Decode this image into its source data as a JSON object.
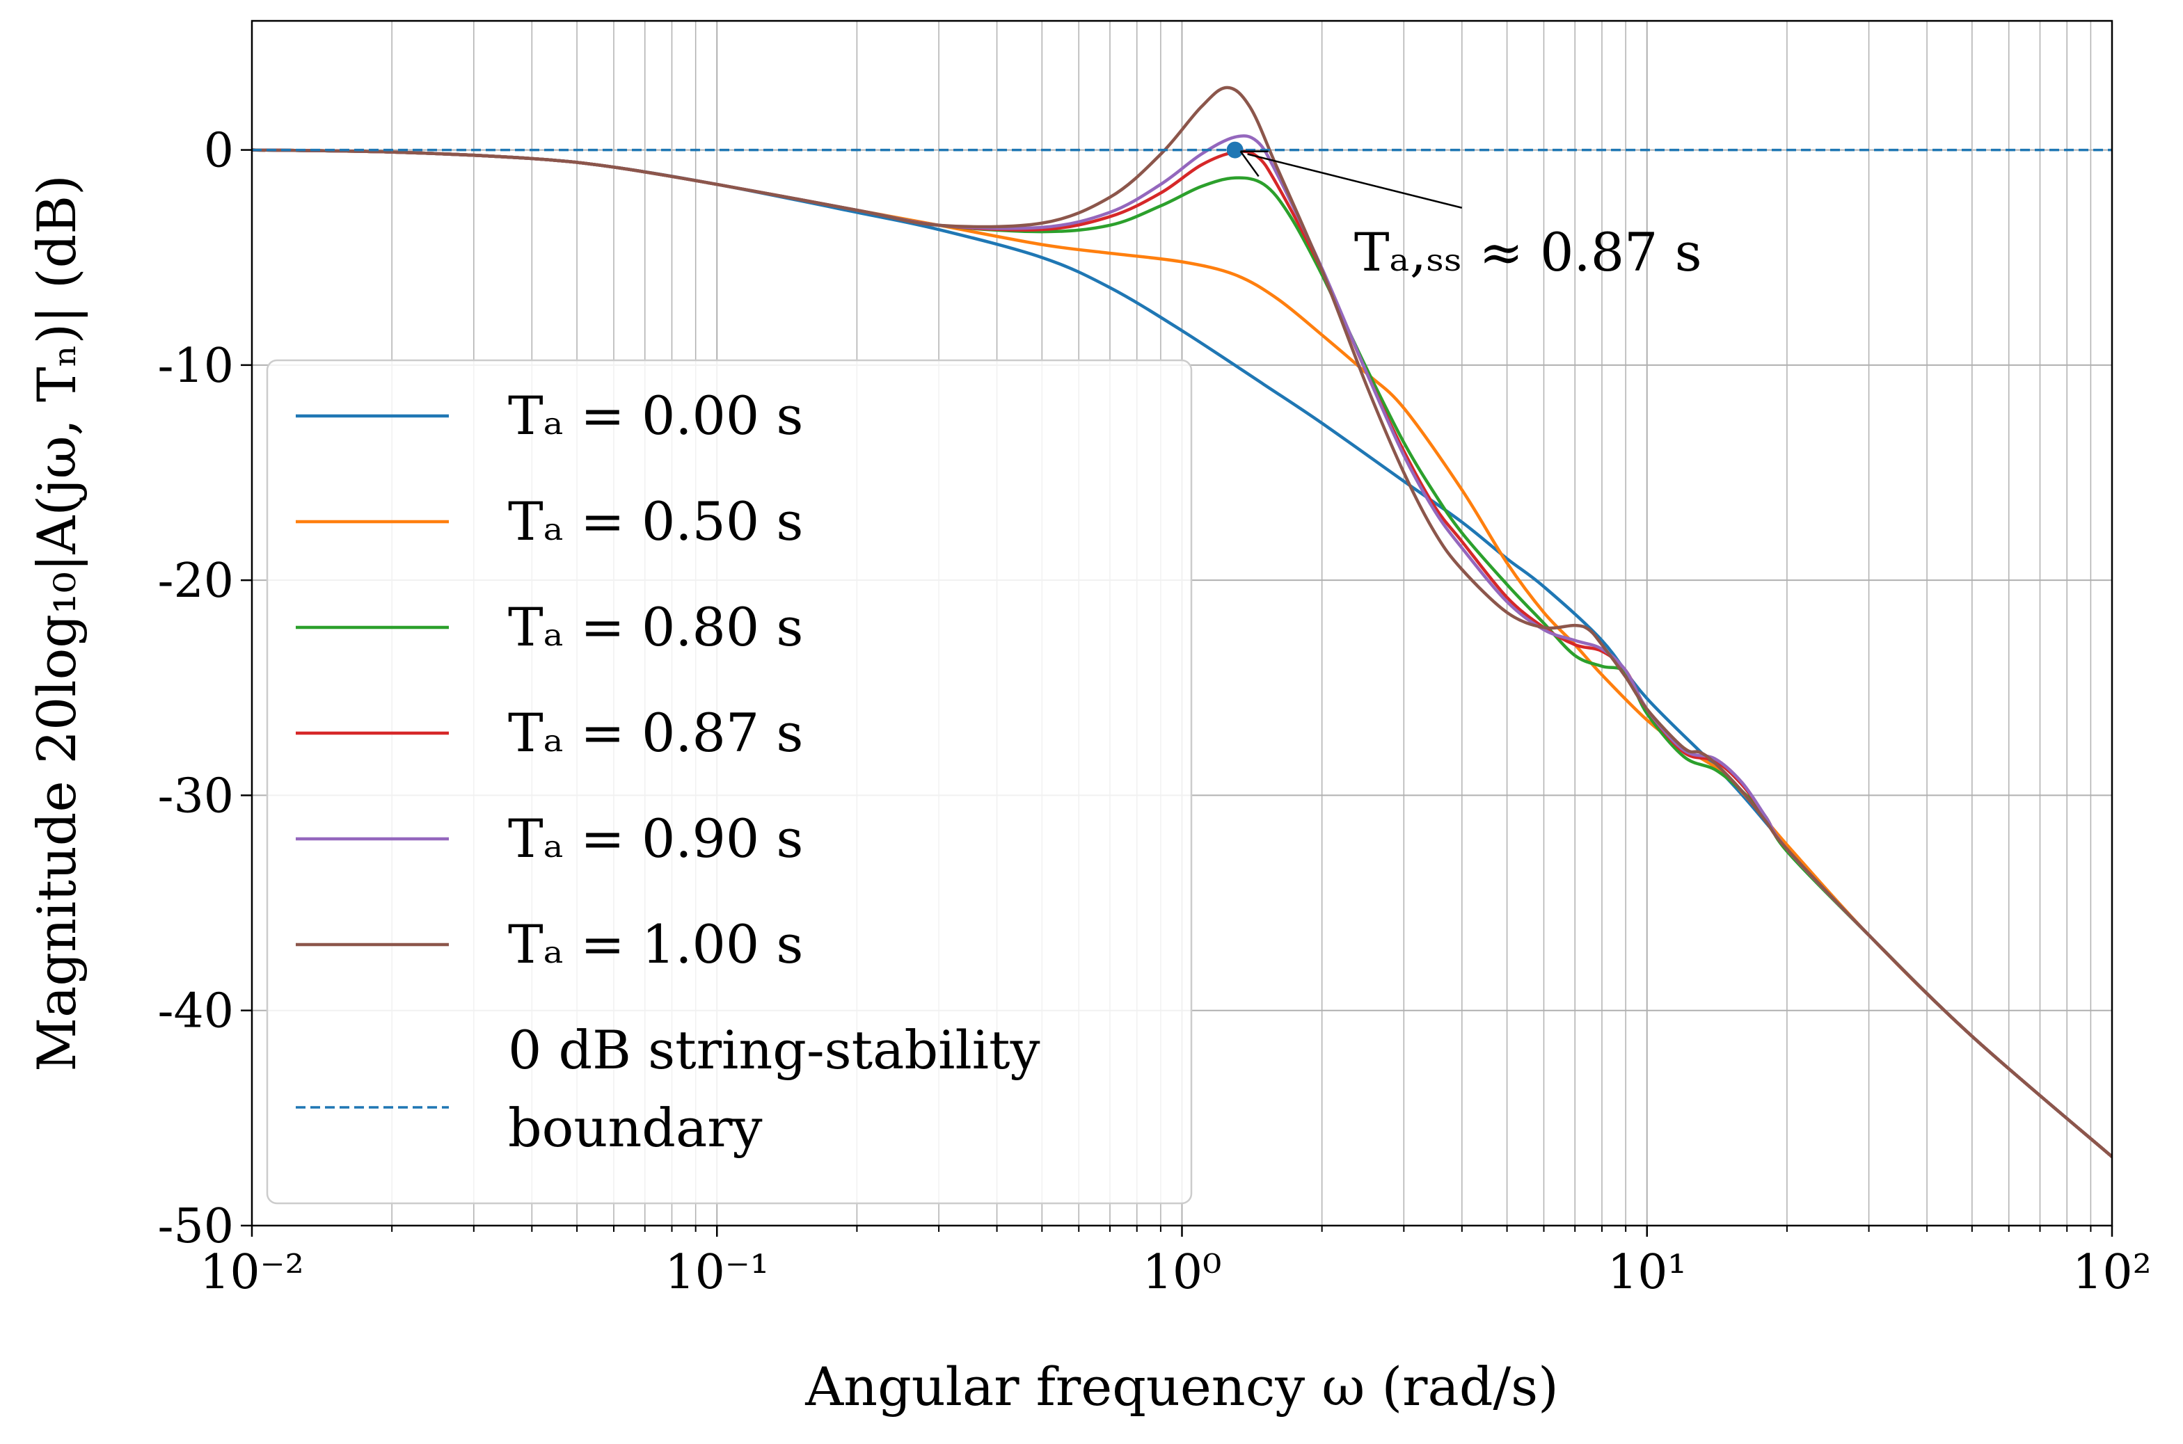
{
  "chart_data": {
    "type": "line",
    "xscale": "log",
    "xlabel": "Angular frequency ω (rad/s)",
    "ylabel": "Magnitude 20log₁₀|A(jω, Tₙ)| (dB)",
    "xlim": [
      0.01,
      100
    ],
    "ylim": [
      -50,
      6
    ],
    "x_ticks": [
      0.01,
      0.1,
      1,
      10,
      100
    ],
    "x_tick_labels": [
      "10⁻²",
      "10⁻¹",
      "10⁰",
      "10¹",
      "10²"
    ],
    "y_ticks": [
      0,
      -10,
      -20,
      -30,
      -40,
      -50
    ],
    "y_tick_labels": [
      "0",
      "-10",
      "-20",
      "-30",
      "-40",
      "-50"
    ],
    "grid": true,
    "legend_position": "lower-left",
    "series": [
      {
        "name": "Tₐ = 0.00 s",
        "color": "#1f77b4",
        "dash": "solid",
        "points": [
          [
            0.01,
            0
          ],
          [
            0.02,
            -0.1
          ],
          [
            0.04,
            -0.4
          ],
          [
            0.06,
            -0.8
          ],
          [
            0.1,
            -1.6
          ],
          [
            0.2,
            -2.9
          ],
          [
            0.3,
            -3.7
          ],
          [
            0.5,
            -5.0
          ],
          [
            0.7,
            -6.4
          ],
          [
            1.0,
            -8.4
          ],
          [
            1.5,
            -10.9
          ],
          [
            2.0,
            -12.7
          ],
          [
            3.0,
            -15.4
          ],
          [
            4.0,
            -17.3
          ],
          [
            5.0,
            -19.0
          ],
          [
            6.0,
            -20.3
          ],
          [
            8.0,
            -22.8
          ],
          [
            10.0,
            -25.5
          ],
          [
            15.0,
            -29.3
          ],
          [
            20.0,
            -32.4
          ],
          [
            30.0,
            -36.5
          ],
          [
            50.0,
            -41.2
          ],
          [
            100.0,
            -46.8
          ]
        ]
      },
      {
        "name": "Tₐ = 0.50 s",
        "color": "#ff7f0e",
        "dash": "solid",
        "points": [
          [
            0.01,
            0
          ],
          [
            0.02,
            -0.1
          ],
          [
            0.04,
            -0.4
          ],
          [
            0.06,
            -0.8
          ],
          [
            0.1,
            -1.6
          ],
          [
            0.2,
            -2.8
          ],
          [
            0.3,
            -3.5
          ],
          [
            0.5,
            -4.4
          ],
          [
            0.7,
            -4.8
          ],
          [
            1.0,
            -5.2
          ],
          [
            1.3,
            -5.8
          ],
          [
            1.6,
            -6.9
          ],
          [
            2.0,
            -8.6
          ],
          [
            2.5,
            -10.4
          ],
          [
            3.0,
            -12.0
          ],
          [
            4.0,
            -15.8
          ],
          [
            5.0,
            -19.2
          ],
          [
            6.0,
            -21.5
          ],
          [
            7.0,
            -23.0
          ],
          [
            8.0,
            -24.4
          ],
          [
            10.0,
            -26.5
          ],
          [
            12.0,
            -27.8
          ],
          [
            15.0,
            -29.2
          ],
          [
            20.0,
            -32.3
          ],
          [
            30.0,
            -36.5
          ],
          [
            50.0,
            -41.2
          ],
          [
            100.0,
            -46.8
          ]
        ]
      },
      {
        "name": "Tₐ = 0.80 s",
        "color": "#2ca02c",
        "dash": "solid",
        "points": [
          [
            0.01,
            0
          ],
          [
            0.02,
            -0.1
          ],
          [
            0.04,
            -0.4
          ],
          [
            0.06,
            -0.8
          ],
          [
            0.1,
            -1.6
          ],
          [
            0.2,
            -2.8
          ],
          [
            0.3,
            -3.5
          ],
          [
            0.5,
            -3.8
          ],
          [
            0.7,
            -3.5
          ],
          [
            0.9,
            -2.6
          ],
          [
            1.1,
            -1.7
          ],
          [
            1.3,
            -1.3
          ],
          [
            1.5,
            -1.6
          ],
          [
            1.7,
            -3.0
          ],
          [
            2.0,
            -5.8
          ],
          [
            2.5,
            -10.2
          ],
          [
            3.0,
            -13.6
          ],
          [
            3.5,
            -16.0
          ],
          [
            4.0,
            -17.8
          ],
          [
            5.0,
            -20.2
          ],
          [
            6.0,
            -22.0
          ],
          [
            7.0,
            -23.5
          ],
          [
            8.0,
            -24.0
          ],
          [
            9.0,
            -24.3
          ],
          [
            10.0,
            -26.2
          ],
          [
            12.0,
            -28.2
          ],
          [
            14.0,
            -28.8
          ],
          [
            16.0,
            -29.8
          ],
          [
            18.0,
            -31.0
          ],
          [
            20.0,
            -32.6
          ],
          [
            30.0,
            -36.5
          ],
          [
            50.0,
            -41.2
          ],
          [
            100.0,
            -46.8
          ]
        ]
      },
      {
        "name": "Tₐ = 0.87 s",
        "color": "#d62728",
        "dash": "solid",
        "points": [
          [
            0.01,
            0
          ],
          [
            0.02,
            -0.1
          ],
          [
            0.04,
            -0.4
          ],
          [
            0.06,
            -0.8
          ],
          [
            0.1,
            -1.6
          ],
          [
            0.2,
            -2.8
          ],
          [
            0.3,
            -3.5
          ],
          [
            0.5,
            -3.7
          ],
          [
            0.7,
            -3.1
          ],
          [
            0.9,
            -2.0
          ],
          [
            1.1,
            -0.7
          ],
          [
            1.3,
            -0.1
          ],
          [
            1.45,
            -0.3
          ],
          [
            1.6,
            -1.6
          ],
          [
            2.0,
            -5.6
          ],
          [
            2.5,
            -10.4
          ],
          [
            3.0,
            -14.0
          ],
          [
            3.5,
            -16.6
          ],
          [
            4.0,
            -18.2
          ],
          [
            5.0,
            -20.8
          ],
          [
            6.0,
            -22.2
          ],
          [
            7.0,
            -23.0
          ],
          [
            8.0,
            -23.3
          ],
          [
            9.0,
            -24.2
          ],
          [
            10.0,
            -26.0
          ],
          [
            12.0,
            -28.0
          ],
          [
            14.0,
            -28.4
          ],
          [
            16.0,
            -29.5
          ],
          [
            18.0,
            -31.0
          ],
          [
            20.0,
            -32.5
          ],
          [
            30.0,
            -36.5
          ],
          [
            50.0,
            -41.2
          ],
          [
            100.0,
            -46.8
          ]
        ]
      },
      {
        "name": "Tₐ = 0.90 s",
        "color": "#9467bd",
        "dash": "solid",
        "points": [
          [
            0.01,
            0
          ],
          [
            0.02,
            -0.1
          ],
          [
            0.04,
            -0.4
          ],
          [
            0.06,
            -0.8
          ],
          [
            0.1,
            -1.6
          ],
          [
            0.2,
            -2.8
          ],
          [
            0.3,
            -3.5
          ],
          [
            0.5,
            -3.6
          ],
          [
            0.7,
            -2.9
          ],
          [
            0.9,
            -1.6
          ],
          [
            1.1,
            -0.2
          ],
          [
            1.3,
            0.6
          ],
          [
            1.45,
            0.4
          ],
          [
            1.6,
            -1.1
          ],
          [
            2.0,
            -5.5
          ],
          [
            2.5,
            -10.4
          ],
          [
            3.0,
            -14.2
          ],
          [
            3.5,
            -16.8
          ],
          [
            4.0,
            -18.5
          ],
          [
            5.0,
            -21.0
          ],
          [
            6.0,
            -22.3
          ],
          [
            7.0,
            -22.8
          ],
          [
            8.0,
            -23.2
          ],
          [
            9.0,
            -24.2
          ],
          [
            10.0,
            -26.0
          ],
          [
            12.0,
            -27.9
          ],
          [
            14.0,
            -28.3
          ],
          [
            16.0,
            -29.4
          ],
          [
            18.0,
            -31.0
          ],
          [
            20.0,
            -32.5
          ],
          [
            30.0,
            -36.5
          ],
          [
            50.0,
            -41.2
          ],
          [
            100.0,
            -46.8
          ]
        ]
      },
      {
        "name": "Tₐ = 1.00 s",
        "color": "#8c564b",
        "dash": "solid",
        "points": [
          [
            0.01,
            0
          ],
          [
            0.02,
            -0.1
          ],
          [
            0.04,
            -0.4
          ],
          [
            0.06,
            -0.8
          ],
          [
            0.1,
            -1.6
          ],
          [
            0.2,
            -2.8
          ],
          [
            0.3,
            -3.5
          ],
          [
            0.5,
            -3.4
          ],
          [
            0.7,
            -2.2
          ],
          [
            0.9,
            -0.2
          ],
          [
            1.1,
            2.0
          ],
          [
            1.25,
            2.9
          ],
          [
            1.4,
            2.0
          ],
          [
            1.6,
            -0.8
          ],
          [
            2.0,
            -5.6
          ],
          [
            2.5,
            -11.0
          ],
          [
            3.0,
            -15.0
          ],
          [
            3.5,
            -17.8
          ],
          [
            4.0,
            -19.5
          ],
          [
            5.0,
            -21.5
          ],
          [
            6.0,
            -22.2
          ],
          [
            7.0,
            -22.1
          ],
          [
            7.5,
            -22.3
          ],
          [
            8.0,
            -23.0
          ],
          [
            9.0,
            -24.5
          ],
          [
            10.0,
            -26.0
          ],
          [
            12.0,
            -27.8
          ],
          [
            13.0,
            -28.0
          ],
          [
            14.0,
            -28.5
          ],
          [
            16.0,
            -29.8
          ],
          [
            18.0,
            -31.2
          ],
          [
            20.0,
            -32.5
          ],
          [
            30.0,
            -36.5
          ],
          [
            50.0,
            -41.2
          ],
          [
            100.0,
            -46.8
          ]
        ]
      },
      {
        "name": "0 dB string-stability boundary",
        "color": "#1f77b4",
        "dash": "dashed",
        "points": [
          [
            0.01,
            0
          ],
          [
            100.0,
            0
          ]
        ]
      }
    ],
    "legend": [
      {
        "label": "Tₐ = 0.00 s",
        "color": "#1f77b4",
        "dash": "solid"
      },
      {
        "label": "Tₐ = 0.50 s",
        "color": "#ff7f0e",
        "dash": "solid"
      },
      {
        "label": "Tₐ = 0.80 s",
        "color": "#2ca02c",
        "dash": "solid"
      },
      {
        "label": "Tₐ = 0.87 s",
        "color": "#d62728",
        "dash": "solid"
      },
      {
        "label": "Tₐ = 0.90 s",
        "color": "#9467bd",
        "dash": "solid"
      },
      {
        "label": "Tₐ = 1.00 s",
        "color": "#8c564b",
        "dash": "solid"
      },
      {
        "label": "0 dB string-stability",
        "label2": "boundary",
        "color": "#1f77b4",
        "dash": "dashed"
      }
    ],
    "marker": {
      "x": 1.3,
      "y": 0,
      "color": "#1f77b4"
    },
    "annotation": {
      "text": "Tₐ,ₛₛ ≈ 0.87 s",
      "points_to": [
        1.3,
        0
      ],
      "text_at": [
        4.0,
        -5.6
      ]
    }
  }
}
